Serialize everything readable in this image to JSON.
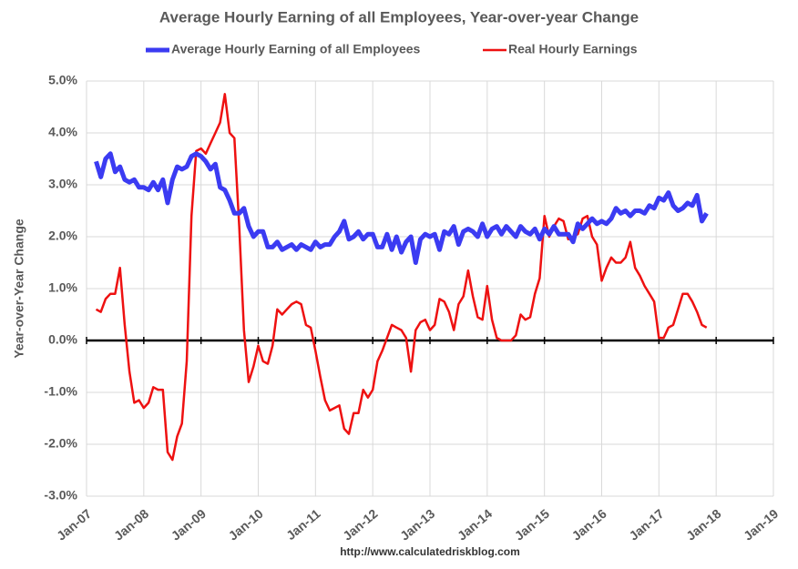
{
  "chart_data": {
    "type": "line",
    "title": "Average Hourly Earning of all Employees, Year-over-year Change",
    "y_label": "Year-over-Year Change",
    "source": "http://www.calculatedriskblog.com",
    "legend": "top",
    "grid": true,
    "xlim": [
      "2007-01",
      "2019-01"
    ],
    "xticks": [
      {
        "value": "2007-01",
        "label": "Jan-07"
      },
      {
        "value": "2008-01",
        "label": "Jan-08"
      },
      {
        "value": "2009-01",
        "label": "Jan-09"
      },
      {
        "value": "2010-01",
        "label": "Jan-10"
      },
      {
        "value": "2011-01",
        "label": "Jan-11"
      },
      {
        "value": "2012-01",
        "label": "Jan-12"
      },
      {
        "value": "2013-01",
        "label": "Jan-13"
      },
      {
        "value": "2014-01",
        "label": "Jan-14"
      },
      {
        "value": "2015-01",
        "label": "Jan-15"
      },
      {
        "value": "2016-01",
        "label": "Jan-16"
      },
      {
        "value": "2017-01",
        "label": "Jan-17"
      },
      {
        "value": "2018-01",
        "label": "Jan-18"
      },
      {
        "value": "2019-01",
        "label": "Jan-19"
      }
    ],
    "ylim": [
      -3,
      5
    ],
    "yticks": [
      {
        "value": -3,
        "label": "-3.0%"
      },
      {
        "value": -2,
        "label": "-2.0%"
      },
      {
        "value": -1,
        "label": "-1.0%"
      },
      {
        "value": 0,
        "label": "0.0%"
      },
      {
        "value": 1,
        "label": "1.0%"
      },
      {
        "value": 2,
        "label": "2.0%"
      },
      {
        "value": 3,
        "label": "3.0%"
      },
      {
        "value": 4,
        "label": "4.0%"
      },
      {
        "value": 5,
        "label": "5.0%"
      }
    ],
    "x": [
      "2007-03",
      "2007-04",
      "2007-05",
      "2007-06",
      "2007-07",
      "2007-08",
      "2007-09",
      "2007-10",
      "2007-11",
      "2007-12",
      "2008-01",
      "2008-02",
      "2008-03",
      "2008-04",
      "2008-05",
      "2008-06",
      "2008-07",
      "2008-08",
      "2008-09",
      "2008-10",
      "2008-11",
      "2008-12",
      "2009-01",
      "2009-02",
      "2009-03",
      "2009-04",
      "2009-05",
      "2009-06",
      "2009-07",
      "2009-08",
      "2009-09",
      "2009-10",
      "2009-11",
      "2009-12",
      "2010-01",
      "2010-02",
      "2010-03",
      "2010-04",
      "2010-05",
      "2010-06",
      "2010-07",
      "2010-08",
      "2010-09",
      "2010-10",
      "2010-11",
      "2010-12",
      "2011-01",
      "2011-02",
      "2011-03",
      "2011-04",
      "2011-05",
      "2011-06",
      "2011-07",
      "2011-08",
      "2011-09",
      "2011-10",
      "2011-11",
      "2011-12",
      "2012-01",
      "2012-02",
      "2012-03",
      "2012-04",
      "2012-05",
      "2012-06",
      "2012-07",
      "2012-08",
      "2012-09",
      "2012-10",
      "2012-11",
      "2012-12",
      "2013-01",
      "2013-02",
      "2013-03",
      "2013-04",
      "2013-05",
      "2013-06",
      "2013-07",
      "2013-08",
      "2013-09",
      "2013-10",
      "2013-11",
      "2013-12",
      "2014-01",
      "2014-02",
      "2014-03",
      "2014-04",
      "2014-05",
      "2014-06",
      "2014-07",
      "2014-08",
      "2014-09",
      "2014-10",
      "2014-11",
      "2014-12",
      "2015-01",
      "2015-02",
      "2015-03",
      "2015-04",
      "2015-05",
      "2015-06",
      "2015-07",
      "2015-08",
      "2015-09",
      "2015-10",
      "2015-11",
      "2015-12",
      "2016-01",
      "2016-02",
      "2016-03",
      "2016-04",
      "2016-05",
      "2016-06",
      "2016-07",
      "2016-08",
      "2016-09",
      "2016-10",
      "2016-11",
      "2016-12",
      "2017-01",
      "2017-02",
      "2017-03",
      "2017-04",
      "2017-05",
      "2017-06",
      "2017-07",
      "2017-08",
      "2017-09",
      "2017-10",
      "2017-11"
    ],
    "series": [
      {
        "name": "Average Hourly Earning of all Employees",
        "color": "#3b3bf2",
        "width": 5,
        "values": [
          3.45,
          3.15,
          3.5,
          3.6,
          3.25,
          3.35,
          3.1,
          3.05,
          3.1,
          2.95,
          2.95,
          2.9,
          3.05,
          2.9,
          3.1,
          2.65,
          3.1,
          3.35,
          3.3,
          3.35,
          3.55,
          3.6,
          3.55,
          3.45,
          3.3,
          3.4,
          2.95,
          2.9,
          2.7,
          2.45,
          2.45,
          2.55,
          2.2,
          2.0,
          2.1,
          2.1,
          1.8,
          1.8,
          1.9,
          1.75,
          1.8,
          1.85,
          1.75,
          1.85,
          1.8,
          1.75,
          1.9,
          1.8,
          1.85,
          1.85,
          2.0,
          2.1,
          2.3,
          1.95,
          2.0,
          2.1,
          1.95,
          2.05,
          2.05,
          1.8,
          1.8,
          2.05,
          1.75,
          2.0,
          1.7,
          1.9,
          2.0,
          1.5,
          1.95,
          2.05,
          2.0,
          2.05,
          1.75,
          2.1,
          2.05,
          2.2,
          1.85,
          2.1,
          2.15,
          2.1,
          2.0,
          2.25,
          2.0,
          2.15,
          2.2,
          2.05,
          2.2,
          2.1,
          2.0,
          2.2,
          2.1,
          2.05,
          2.15,
          1.95,
          2.15,
          2.05,
          2.2,
          2.05,
          2.05,
          2.05,
          1.9,
          2.25,
          2.15,
          2.25,
          2.35,
          2.25,
          2.3,
          2.25,
          2.35,
          2.55,
          2.45,
          2.5,
          2.4,
          2.5,
          2.5,
          2.45,
          2.6,
          2.55,
          2.75,
          2.7,
          2.85,
          2.6,
          2.5,
          2.55,
          2.65,
          2.6,
          2.8,
          2.3,
          2.45
        ]
      },
      {
        "name": "Real Hourly Earnings",
        "color": "#ee1111",
        "width": 2.5,
        "values": [
          0.6,
          0.55,
          0.8,
          0.9,
          0.9,
          1.4,
          0.3,
          -0.6,
          -1.2,
          -1.15,
          -1.3,
          -1.2,
          -0.9,
          -0.95,
          -0.95,
          -2.15,
          -2.3,
          -1.85,
          -1.6,
          -0.4,
          2.4,
          3.65,
          3.7,
          3.6,
          3.8,
          4.0,
          4.2,
          4.75,
          4.0,
          3.9,
          2.2,
          0.2,
          -0.8,
          -0.5,
          -0.1,
          -0.4,
          -0.45,
          -0.1,
          0.6,
          0.5,
          0.6,
          0.7,
          0.75,
          0.7,
          0.3,
          0.25,
          -0.2,
          -0.7,
          -1.15,
          -1.35,
          -1.3,
          -1.25,
          -1.7,
          -1.8,
          -1.4,
          -1.4,
          -0.95,
          -1.1,
          -0.95,
          -0.4,
          -0.2,
          0.05,
          0.3,
          0.25,
          0.2,
          0.05,
          -0.6,
          0.2,
          0.35,
          0.4,
          0.2,
          0.3,
          0.8,
          0.75,
          0.55,
          0.2,
          0.7,
          0.85,
          1.35,
          0.85,
          0.45,
          0.4,
          1.05,
          0.4,
          0.05,
          0.0,
          0.0,
          0.0,
          0.1,
          0.5,
          0.4,
          0.45,
          0.9,
          1.2,
          2.4,
          2.0,
          2.2,
          2.35,
          2.3,
          1.95,
          2.0,
          2.05,
          2.35,
          2.4,
          2.0,
          1.85,
          1.15,
          1.4,
          1.6,
          1.5,
          1.5,
          1.6,
          1.9,
          1.4,
          1.25,
          1.05,
          0.9,
          0.75,
          0.05,
          0.05,
          0.25,
          0.3,
          0.6,
          0.9,
          0.9,
          0.75,
          0.55,
          0.3,
          0.25
        ]
      }
    ]
  }
}
